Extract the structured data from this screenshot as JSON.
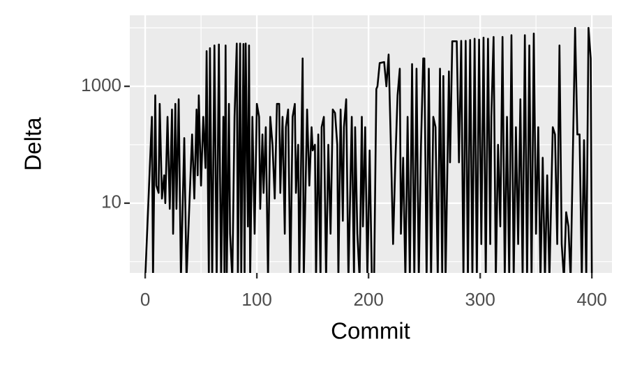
{
  "chart_data": {
    "type": "line",
    "x_label": "Commit",
    "y_label": "Delta",
    "log_y": true,
    "grid": true,
    "color": "#000000",
    "xlim": [
      -13.8,
      418
    ],
    "xticks": [
      0,
      100,
      200,
      300,
      400
    ],
    "xminorticks": [
      50,
      150,
      250,
      350
    ],
    "ylim": [
      0.64,
      16400
    ],
    "yticks": [
      10,
      1000
    ],
    "yminorticks": [
      1,
      100,
      10000
    ],
    "x": [
      0,
      6,
      7,
      9,
      10,
      12,
      13,
      15,
      17,
      18,
      20,
      22,
      24,
      25,
      27,
      28,
      30,
      32,
      35,
      37,
      42,
      44,
      46,
      47,
      48,
      50,
      52,
      54,
      55,
      57,
      58,
      60,
      62,
      64,
      66,
      67,
      68,
      70,
      71,
      72,
      73,
      75,
      76,
      78,
      80,
      82,
      83,
      85,
      86,
      88,
      89,
      90,
      92,
      93,
      94,
      96,
      98,
      100,
      102,
      103,
      105,
      106,
      108,
      110,
      112,
      114,
      116,
      118,
      120,
      121,
      123,
      125,
      126,
      128,
      130,
      132,
      134,
      135,
      137,
      138,
      141,
      142,
      145,
      147,
      149,
      150,
      152,
      153,
      155,
      157,
      158,
      160,
      162,
      164,
      166,
      168,
      170,
      172,
      173,
      175,
      177,
      178,
      180,
      182,
      185,
      187,
      188,
      190,
      192,
      194,
      195,
      197,
      199,
      201,
      203,
      205,
      207,
      208,
      210,
      214,
      216,
      218,
      220,
      222,
      224,
      226,
      228,
      229,
      231,
      233,
      235,
      237,
      239,
      241,
      243,
      245,
      247,
      249,
      250,
      252,
      254,
      256,
      258,
      260,
      262,
      264,
      266,
      267,
      269,
      272,
      273,
      275,
      279,
      281,
      283,
      285,
      287,
      289,
      291,
      293,
      295,
      297,
      299,
      301,
      303,
      305,
      307,
      309,
      310,
      312,
      314,
      316,
      318,
      320,
      322,
      324,
      326,
      328,
      330,
      332,
      334,
      336,
      338,
      340,
      342,
      344,
      346,
      348,
      350,
      352,
      354,
      356,
      358,
      360,
      362,
      365,
      367,
      369,
      371,
      373,
      375,
      377,
      379,
      381,
      385,
      387,
      389,
      391,
      393,
      395,
      397,
      399,
      400
    ],
    "values": [
      0.5,
      300,
      0.5,
      700,
      20,
      15,
      500,
      12,
      30,
      10,
      300,
      8,
      400,
      3,
      500,
      8,
      600,
      0.5,
      130,
      0.5,
      150,
      12,
      400,
      30,
      700,
      20,
      300,
      40,
      4000,
      0.5,
      4500,
      0.5,
      5000,
      0.5,
      5200,
      30,
      0.5,
      300,
      0.5,
      5000,
      0.5,
      500,
      3,
      0.5,
      300,
      5400,
      0.5,
      5400,
      0.5,
      5300,
      0.5,
      5400,
      4,
      5000,
      0.5,
      300,
      3,
      500,
      300,
      8,
      150,
      15,
      200,
      0.5,
      300,
      100,
      12,
      500,
      500,
      15,
      300,
      3,
      200,
      400,
      0.5,
      300,
      500,
      15,
      100,
      0.5,
      3000,
      0.5,
      400,
      20,
      200,
      80,
      100,
      0.5,
      150,
      0.5,
      200,
      300,
      0.5,
      100,
      3,
      400,
      350,
      100,
      0.5,
      400,
      5,
      200,
      600,
      0.5,
      300,
      0.5,
      200,
      3,
      0.5,
      300,
      4,
      200,
      0.5,
      80,
      0.5,
      0.5,
      900,
      1000,
      2500,
      2600,
      1000,
      3500,
      100,
      2,
      50,
      700,
      2000,
      3,
      60,
      0.5,
      300,
      0.5,
      2400,
      0.5,
      2000,
      0.5,
      100,
      3000,
      3000,
      0.5,
      2000,
      0.5,
      300,
      200,
      0.5,
      2000,
      0.5,
      1500,
      0.5,
      1800,
      50,
      5900,
      5900,
      50,
      6000,
      0.5,
      6000,
      0.5,
      6200,
      0.5,
      6500,
      0.5,
      6300,
      2,
      6800,
      0.5,
      6500,
      2,
      300,
      7000,
      0.5,
      100,
      4,
      7000,
      0.5,
      300,
      0.5,
      7500,
      0.5,
      200,
      2,
      600,
      0.5,
      7500,
      0.5,
      5000,
      0.5,
      8000,
      3,
      200,
      0.5,
      60,
      0.5,
      30,
      0.5,
      200,
      150,
      2,
      5000,
      2,
      0.5,
      7,
      4,
      0.5,
      10000,
      150,
      150,
      0.5,
      120,
      0.5,
      10000,
      3000,
      0.5
    ]
  }
}
